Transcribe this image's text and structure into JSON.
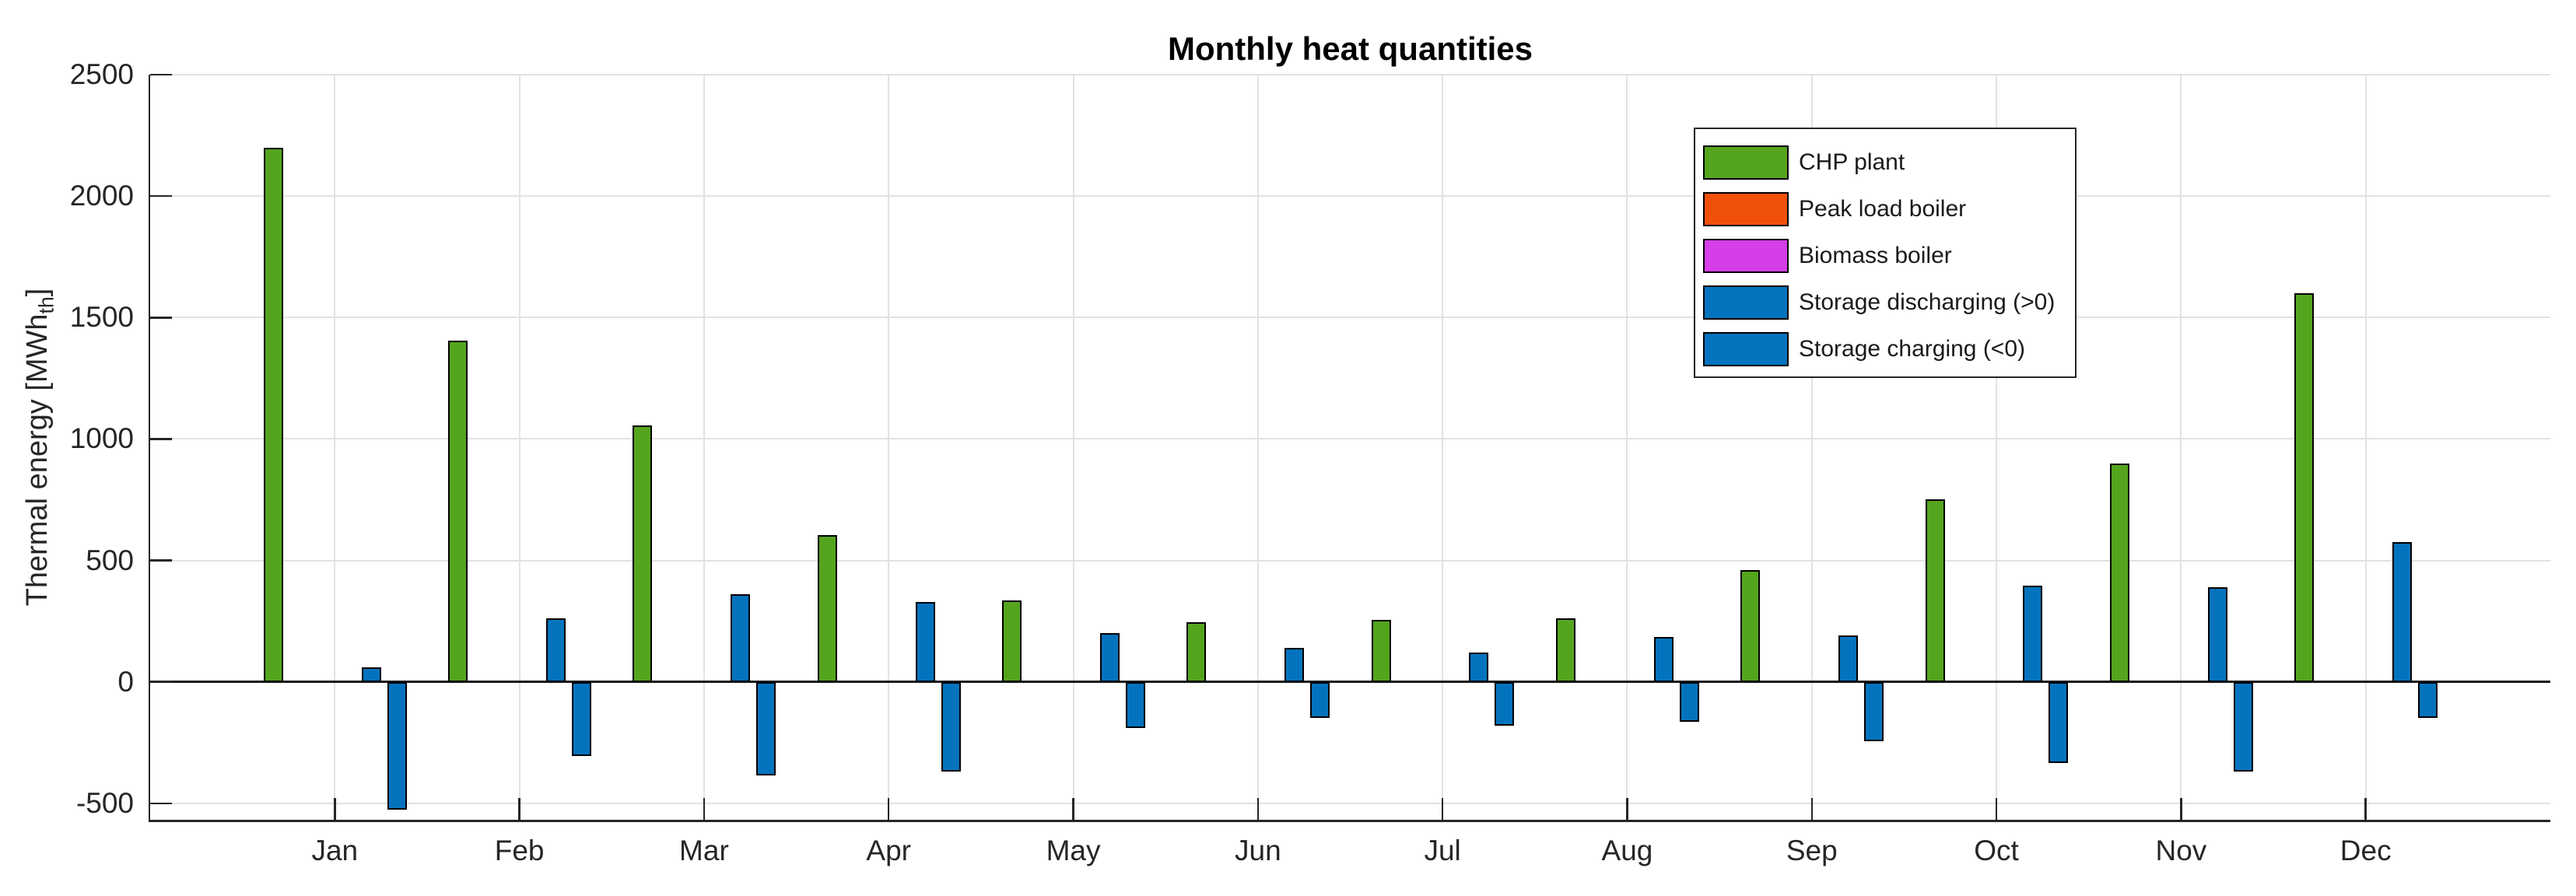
{
  "title": "Monthly heat quantities",
  "ylabel": {
    "pre": "Thermal energy [MWh",
    "sub": "th",
    "post": "]"
  },
  "colors": {
    "axis": "#262626",
    "text": "#262626",
    "grid": "#e2e2e2",
    "zero_line": "#1a1a1a",
    "bar_edge": "#000000",
    "background": "#ffffff",
    "legend_border": "#262626"
  },
  "chart_data": {
    "type": "bar",
    "title": "Monthly heat quantities",
    "xlabel": "",
    "ylabel": "Thermal energy [MWh_th]",
    "categories": [
      "Jan",
      "Feb",
      "Mar",
      "Apr",
      "May",
      "Jun",
      "Jul",
      "Aug",
      "Sep",
      "Oct",
      "Nov",
      "Dec"
    ],
    "yticks": [
      -500,
      0,
      500,
      1000,
      1500,
      2000,
      2500
    ],
    "yticklabels": [
      "-500",
      "0",
      "500",
      "1000",
      "1500",
      "2000",
      "2500"
    ],
    "ylim": [
      -568,
      2500
    ],
    "grid": true,
    "legend_position": "upper-right-inside",
    "series": [
      {
        "name": "CHP plant",
        "color": "#55A41E",
        "values": [
          2200,
          1405,
          1055,
          605,
          335,
          245,
          255,
          260,
          460,
          750,
          900,
          1600
        ]
      },
      {
        "name": "Peak load boiler",
        "color": "#F0500C",
        "values": [
          0,
          0,
          0,
          0,
          0,
          0,
          0,
          0,
          0,
          0,
          0,
          0
        ]
      },
      {
        "name": "Biomass boiler",
        "color": "#D63EE8",
        "values": [
          0,
          0,
          0,
          0,
          0,
          0,
          0,
          0,
          0,
          0,
          0,
          0
        ]
      },
      {
        "name": "Storage discharging (>0)",
        "color": "#0473BE",
        "values": [
          60,
          260,
          360,
          330,
          200,
          140,
          120,
          185,
          190,
          395,
          390,
          575
        ]
      },
      {
        "name": "Storage charging (<0)",
        "color": "#0473BE",
        "values": [
          -525,
          -305,
          -385,
          -370,
          -190,
          -150,
          -180,
          -165,
          -245,
          -335,
          -370,
          -150
        ]
      }
    ]
  }
}
